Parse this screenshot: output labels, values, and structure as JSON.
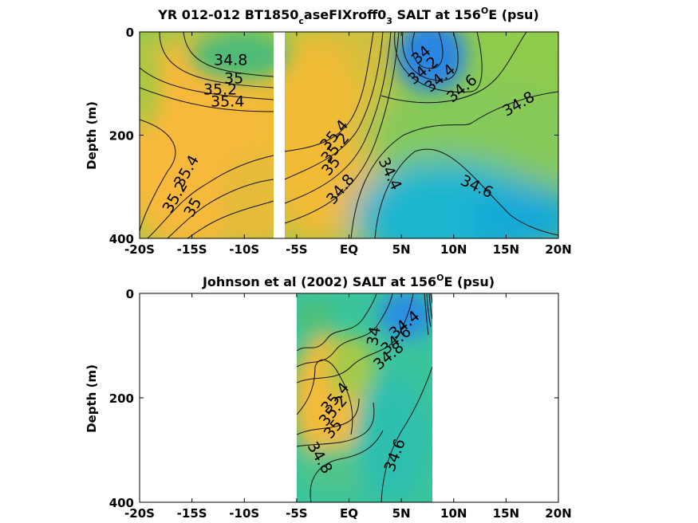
{
  "chart_data": [
    {
      "type": "contour",
      "title_parts": [
        "YR 012-012 BT1850",
        "c",
        "aseFIXroff0",
        "3",
        " SALT at 156",
        "O",
        "E (psu)"
      ],
      "ylabel": "Depth (m)",
      "xlim": [
        -20,
        20
      ],
      "ylim": [
        0,
        400
      ],
      "y_reversed": true,
      "x_ticks": [
        -20,
        -15,
        -10,
        -5,
        0,
        5,
        10,
        15,
        20
      ],
      "x_tick_labels": [
        "-20S",
        "-15S",
        "-10S",
        "-5S",
        "EQ",
        "5N",
        "10N",
        "15N",
        "20N"
      ],
      "y_ticks": [
        0,
        200,
        400
      ],
      "y_tick_labels": [
        "0",
        "200",
        "400"
      ],
      "data_gaps": [
        [
          -7.2,
          -6.4
        ]
      ],
      "colors": {
        "high": "#f5b93a",
        "mid": "#7ec75a",
        "low": "#2a8fe0"
      },
      "contour_labels": [
        {
          "text": "34.8",
          "x": -11.3,
          "y": 55,
          "rot": 0
        },
        {
          "text": "35",
          "x": -11.0,
          "y": 90,
          "rot": 0
        },
        {
          "text": "35.2",
          "x": -12.3,
          "y": 112,
          "rot": 0
        },
        {
          "text": "35.4",
          "x": -11.6,
          "y": 135,
          "rot": 0
        },
        {
          "text": "35.4",
          "x": -15.5,
          "y": 270,
          "rot": -60
        },
        {
          "text": "35.2",
          "x": -16.6,
          "y": 320,
          "rot": -60
        },
        {
          "text": "35",
          "x": -14.9,
          "y": 340,
          "rot": -60
        },
        {
          "text": "34",
          "x": 6.9,
          "y": 45,
          "rot": -40
        },
        {
          "text": "34.2",
          "x": 7.1,
          "y": 75,
          "rot": -40
        },
        {
          "text": "34.4",
          "x": 8.7,
          "y": 90,
          "rot": -40
        },
        {
          "text": "34.6",
          "x": 10.8,
          "y": 110,
          "rot": -40
        },
        {
          "text": "34.8",
          "x": 16.2,
          "y": 140,
          "rot": -30
        },
        {
          "text": "35.4",
          "x": -1.4,
          "y": 200,
          "rot": -50
        },
        {
          "text": "35.2",
          "x": -1.3,
          "y": 225,
          "rot": -50
        },
        {
          "text": "35",
          "x": -1.7,
          "y": 260,
          "rot": -50
        },
        {
          "text": "34.8",
          "x": -0.8,
          "y": 305,
          "rot": -50
        },
        {
          "text": "34.4",
          "x": 3.9,
          "y": 275,
          "rot": 65
        },
        {
          "text": "34.6",
          "x": 12.2,
          "y": 300,
          "rot": 25
        }
      ]
    },
    {
      "type": "contour",
      "title_parts": [
        "Johnson et al (2002) SALT at 156",
        "O",
        "E (psu)"
      ],
      "ylabel": "Depth (m)",
      "xlim": [
        -20,
        20
      ],
      "ylim": [
        0,
        400
      ],
      "y_reversed": true,
      "x_ticks": [
        -20,
        -15,
        -10,
        -5,
        0,
        5,
        10,
        15,
        20
      ],
      "x_tick_labels": [
        "-20S",
        "-15S",
        "-10S",
        "-5S",
        "EQ",
        "5N",
        "10N",
        "15N",
        "20N"
      ],
      "y_ticks": [
        0,
        200,
        400
      ],
      "y_tick_labels": [
        "0",
        "200",
        "400"
      ],
      "data_range_x": [
        -5,
        8
      ],
      "colors": {
        "high": "#f5b93a",
        "mid": "#7ec75a",
        "low": "#2a8fe0"
      },
      "contour_labels": [
        {
          "text": "34.4",
          "x": 5.3,
          "y": 60,
          "rot": -40
        },
        {
          "text": "34.6",
          "x": 4.5,
          "y": 90,
          "rot": -40
        },
        {
          "text": "34.8",
          "x": 3.8,
          "y": 120,
          "rot": -40
        },
        {
          "text": "34",
          "x": 2.4,
          "y": 82,
          "rot": -80
        },
        {
          "text": "35.4",
          "x": -1.3,
          "y": 200,
          "rot": -50
        },
        {
          "text": "35.2",
          "x": -1.5,
          "y": 225,
          "rot": -50
        },
        {
          "text": "35",
          "x": -1.5,
          "y": 260,
          "rot": -50
        },
        {
          "text": "34.8",
          "x": -2.8,
          "y": 315,
          "rot": 60
        },
        {
          "text": "34.6",
          "x": 4.4,
          "y": 310,
          "rot": -70
        }
      ]
    }
  ]
}
